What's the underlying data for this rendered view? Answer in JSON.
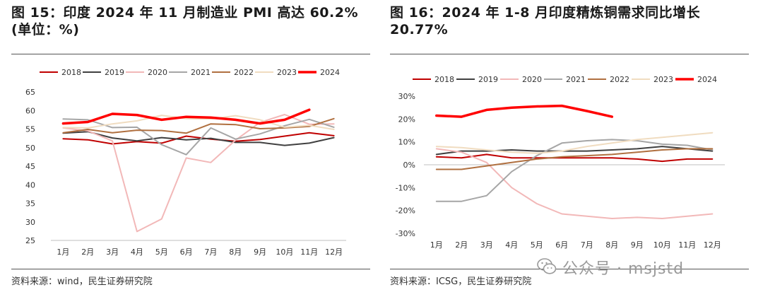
{
  "figures": [
    {
      "title": "图 15：印度 2024 年 11 月制造业 PMI 高达 60.2%(单位：%)",
      "source": "资料来源：wind，民生证券研究院"
    },
    {
      "title": "图 16：2024 年 1-8 月印度精炼铜需求同比增长 20.77%",
      "source": "资料来源：ICSG，民生证券研究院"
    }
  ],
  "watermark": "公众号 · msjstd",
  "chart_data": [
    {
      "type": "line",
      "title": "",
      "xlabel": "",
      "ylabel": "",
      "categories": [
        "1月",
        "2月",
        "3月",
        "4月",
        "5月",
        "6月",
        "7月",
        "8月",
        "9月",
        "10月",
        "11月",
        "12月"
      ],
      "ylim": [
        25,
        65
      ],
      "yticks": [
        25,
        30,
        35,
        40,
        45,
        50,
        55,
        60,
        65
      ],
      "ytick_labels": [
        "25",
        "30",
        "35",
        "40",
        "45",
        "50",
        "55",
        "60",
        "65"
      ],
      "grid": false,
      "legend_position": "top",
      "series": [
        {
          "name": "2018",
          "color": "#c00000",
          "width": 2,
          "values": [
            52.4,
            52.1,
            51.0,
            51.6,
            51.2,
            53.1,
            52.3,
            51.7,
            52.2,
            53.1,
            54.0,
            53.2
          ]
        },
        {
          "name": "2019",
          "color": "#404040",
          "width": 2,
          "values": [
            53.9,
            54.3,
            52.6,
            51.8,
            52.7,
            52.1,
            52.5,
            51.4,
            51.4,
            50.6,
            51.2,
            52.7
          ]
        },
        {
          "name": "2020",
          "color": "#f2b8b8",
          "width": 2,
          "values": [
            55.3,
            54.5,
            51.8,
            27.4,
            30.8,
            47.2,
            46.0,
            52.0,
            56.8,
            58.9,
            56.3,
            56.4
          ]
        },
        {
          "name": "2021",
          "color": "#a6a6a6",
          "width": 2,
          "values": [
            57.7,
            57.5,
            55.4,
            55.5,
            50.8,
            48.1,
            55.3,
            52.3,
            53.7,
            55.9,
            57.6,
            55.5
          ]
        },
        {
          "name": "2022",
          "color": "#b07040",
          "width": 2,
          "values": [
            54.0,
            54.9,
            54.0,
            54.7,
            54.6,
            53.9,
            56.4,
            56.2,
            55.1,
            55.3,
            55.7,
            57.8
          ]
        },
        {
          "name": "2023",
          "color": "#f0dcc0",
          "width": 2,
          "values": [
            55.4,
            55.3,
            56.4,
            57.2,
            58.7,
            57.8,
            57.7,
            58.6,
            57.5,
            55.5,
            56.0,
            54.9
          ]
        },
        {
          "name": "2024",
          "color": "#ff0000",
          "width": 3.5,
          "values": [
            56.5,
            56.9,
            59.1,
            58.8,
            57.5,
            58.3,
            58.1,
            57.5,
            56.5,
            57.5,
            60.2,
            null
          ]
        }
      ]
    },
    {
      "type": "line",
      "title": "",
      "xlabel": "",
      "ylabel": "",
      "categories": [
        "1月",
        "2月",
        "3月",
        "4月",
        "5月",
        "6月",
        "7月",
        "8月",
        "9月",
        "10月",
        "11月",
        "12月"
      ],
      "ylim": [
        -30,
        30
      ],
      "yticks": [
        -30,
        -20,
        -10,
        0,
        10,
        20,
        30
      ],
      "ytick_labels": [
        "-30%",
        "-20%",
        "-10%",
        "0%",
        "10%",
        "20%",
        "30%"
      ],
      "grid": false,
      "legend_position": "top",
      "series": [
        {
          "name": "2018",
          "color": "#c00000",
          "width": 2,
          "values": [
            3.5,
            3.0,
            4.5,
            3.0,
            3.0,
            3.0,
            3.0,
            3.0,
            2.5,
            1.5,
            2.5,
            2.5
          ]
        },
        {
          "name": "2019",
          "color": "#404040",
          "width": 2,
          "values": [
            4.5,
            6.0,
            6.0,
            6.5,
            6.0,
            6.0,
            6.0,
            6.5,
            7.0,
            8.0,
            7.0,
            6.0
          ]
        },
        {
          "name": "2020",
          "color": "#f2b8b8",
          "width": 2,
          "values": [
            7.0,
            5.5,
            1.0,
            -10.0,
            -17.0,
            -21.5,
            -22.5,
            -23.5,
            -23.0,
            -23.5,
            -22.5,
            -21.5
          ]
        },
        {
          "name": "2021",
          "color": "#a6a6a6",
          "width": 2,
          "values": [
            -16.0,
            -16.0,
            -13.5,
            -3.0,
            4.0,
            9.5,
            10.5,
            11.0,
            10.5,
            9.0,
            8.5,
            6.5
          ]
        },
        {
          "name": "2022",
          "color": "#b07040",
          "width": 2,
          "values": [
            -2.0,
            -2.0,
            -0.5,
            1.0,
            2.5,
            3.5,
            4.0,
            4.5,
            5.5,
            6.5,
            7.0,
            7.0
          ]
        },
        {
          "name": "2023",
          "color": "#f0dcc0",
          "width": 2,
          "values": [
            8.0,
            7.5,
            6.5,
            5.5,
            5.0,
            6.0,
            8.0,
            9.5,
            11.0,
            12.0,
            13.0,
            14.0
          ]
        },
        {
          "name": "2024",
          "color": "#ff0000",
          "width": 3.5,
          "values": [
            21.5,
            21.0,
            24.0,
            25.0,
            25.5,
            25.8,
            23.5,
            21.0,
            null,
            null,
            null,
            null
          ]
        }
      ]
    }
  ]
}
